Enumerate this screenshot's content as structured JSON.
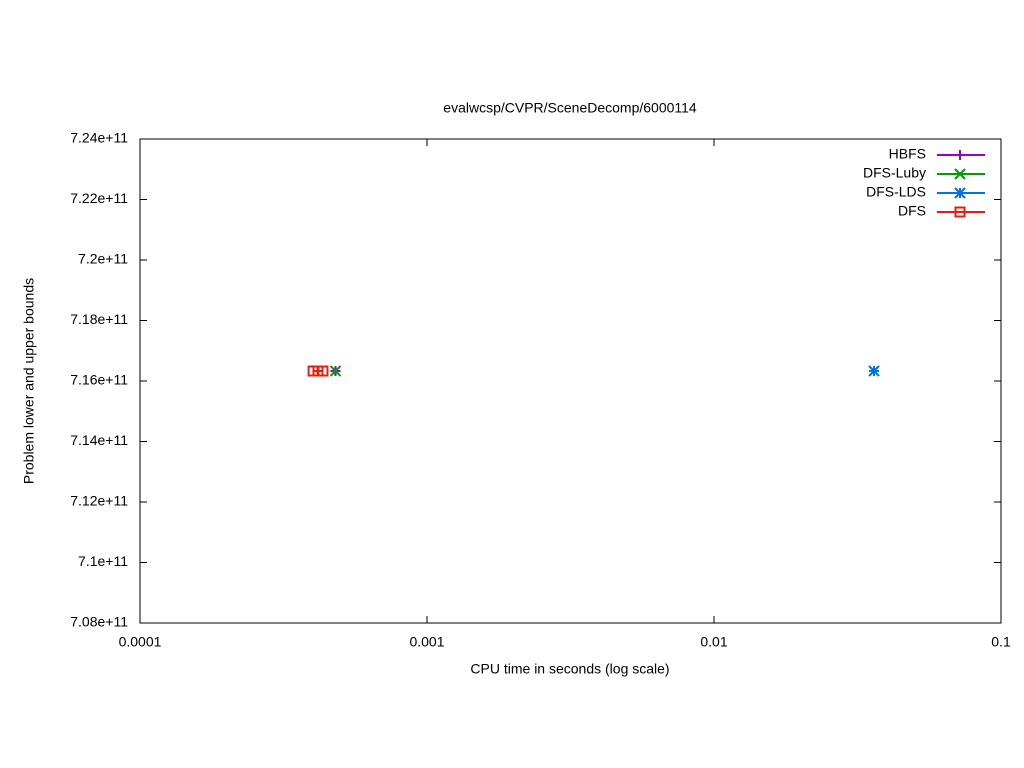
{
  "chart_data": {
    "type": "scatter",
    "title": "evalwcsp/CVPR/SceneDecomp/6000114",
    "x_label": "CPU time in seconds (log scale)",
    "y_label": "Problem lower and upper bounds",
    "x_log": true,
    "xlim": [
      0.0001,
      0.1
    ],
    "xticks": [
      0.0001,
      0.001,
      0.01,
      0.1
    ],
    "ylim": [
      708000000000,
      724000000000
    ],
    "yticks": [
      {
        "value": 708000000000,
        "label": "7.08e+11"
      },
      {
        "value": 710000000000,
        "label": "7.1e+11"
      },
      {
        "value": 712000000000,
        "label": "7.12e+11"
      },
      {
        "value": 714000000000,
        "label": "7.14e+11"
      },
      {
        "value": 716000000000,
        "label": "7.16e+11"
      },
      {
        "value": 718000000000,
        "label": "7.18e+11"
      },
      {
        "value": 720000000000,
        "label": "7.2e+11"
      },
      {
        "value": 722000000000,
        "label": "7.22e+11"
      },
      {
        "value": 724000000000,
        "label": "7.24e+11"
      }
    ],
    "grid": false,
    "legend_position": "top-right",
    "series": [
      {
        "name": "HBFS",
        "color": "#9400d3",
        "marker": "plus",
        "x": [
          0.00048
        ],
        "values": [
          716330000000
        ]
      },
      {
        "name": "DFS-Luby",
        "color": "#009e00",
        "marker": "cross",
        "x": [
          0.00048
        ],
        "values": [
          716330000000
        ]
      },
      {
        "name": "DFS-LDS",
        "color": "#0072e6",
        "marker": "star",
        "x": [
          0.0361
        ],
        "values": [
          716330000000
        ]
      },
      {
        "name": "DFS",
        "color": "#e51e10",
        "marker": "square",
        "x": [
          0.000401,
          0.000417,
          0.000434
        ],
        "values": [
          716330000000,
          716330000000,
          716330000000
        ]
      }
    ]
  }
}
